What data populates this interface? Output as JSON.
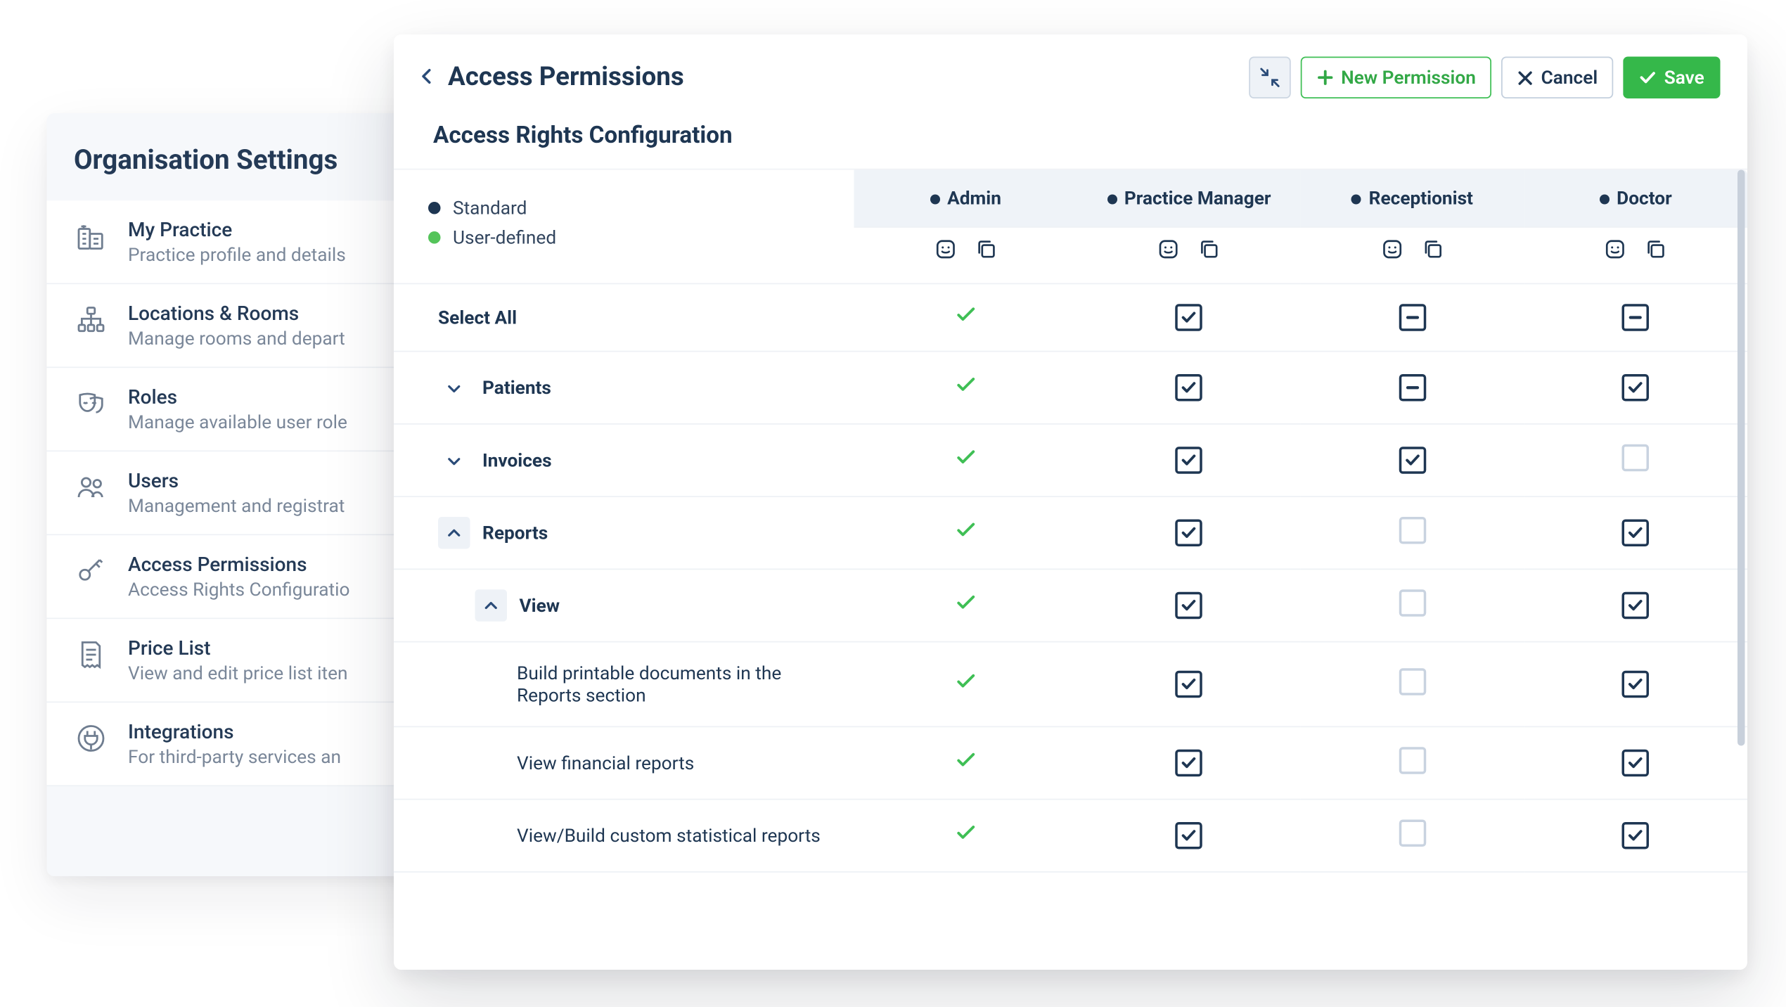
{
  "colors": {
    "brand_dark": "#1e3652",
    "muted_text": "#7a8799",
    "green": "#3fbf55",
    "save_bg": "#35b84a",
    "panel_bg": "#f6f8fb",
    "header_bg": "#eff3f8",
    "border": "#eef1f5",
    "role_dot_standard": "#1e3652",
    "role_dot_user": "#54c45a",
    "chk_light_border": "#c9d3e0",
    "iconbtn_bg": "#eef2f7",
    "iconbtn_border": "#ccd6e2",
    "scrollbar_thumb": "#c8d0db"
  },
  "org_settings": {
    "title": "Organisation Settings",
    "items": [
      {
        "title": "My Practice",
        "desc": "Practice profile and details",
        "icon": "building"
      },
      {
        "title": "Locations & Rooms",
        "desc": "Manage rooms and depart",
        "icon": "hierarchy"
      },
      {
        "title": "Roles",
        "desc": "Manage available user role",
        "icon": "masks"
      },
      {
        "title": "Users",
        "desc": "Management and registrat",
        "icon": "users"
      },
      {
        "title": "Access Permissions",
        "desc": "Access Rights Configuratio",
        "icon": "key"
      },
      {
        "title": "Price List",
        "desc": "View and edit price list iten",
        "icon": "receipt"
      },
      {
        "title": "Integrations",
        "desc": "For third-party services an",
        "icon": "plug"
      }
    ]
  },
  "perm": {
    "title": "Access Permissions",
    "subtitle": "Access Rights Configuration",
    "buttons": {
      "new": "New Permission",
      "cancel": "Cancel",
      "save": "Save"
    },
    "legend": {
      "standard": "Standard",
      "user_defined": "User-defined"
    },
    "roles": [
      {
        "label": "Admin",
        "dot": "#1e3652"
      },
      {
        "label": "Practice Manager",
        "dot": "#1e3652"
      },
      {
        "label": "Receptionist",
        "dot": "#1e3652"
      },
      {
        "label": "Doctor",
        "dot": "#1e3652"
      }
    ],
    "rows": [
      {
        "label": "Select All",
        "indent": 0,
        "bold": true,
        "chev": "",
        "states": [
          "green",
          "checked",
          "indeterminate",
          "indeterminate"
        ]
      },
      {
        "label": "Patients",
        "indent": 1,
        "bold": true,
        "chev": "down",
        "states": [
          "green",
          "checked",
          "indeterminate",
          "checked"
        ]
      },
      {
        "label": "Invoices",
        "indent": 1,
        "bold": true,
        "chev": "down",
        "states": [
          "green",
          "checked",
          "checked",
          "unchecked"
        ]
      },
      {
        "label": "Reports",
        "indent": 1,
        "bold": true,
        "chev": "up-shaded",
        "states": [
          "green",
          "checked",
          "unchecked",
          "checked"
        ]
      },
      {
        "label": "View",
        "indent": 2,
        "bold": true,
        "chev": "up-shaded",
        "states": [
          "green",
          "checked",
          "unchecked",
          "checked"
        ]
      },
      {
        "label": "Build printable documents in the Reports section",
        "indent": 3,
        "bold": false,
        "chev": "",
        "states": [
          "green",
          "checked",
          "unchecked",
          "checked"
        ]
      },
      {
        "label": "View financial reports",
        "indent": 3,
        "bold": false,
        "chev": "",
        "states": [
          "green",
          "checked",
          "unchecked",
          "checked"
        ]
      },
      {
        "label": "View/Build custom statistical reports",
        "indent": 3,
        "bold": false,
        "chev": "",
        "states": [
          "green",
          "checked",
          "unchecked",
          "checked"
        ]
      }
    ]
  }
}
